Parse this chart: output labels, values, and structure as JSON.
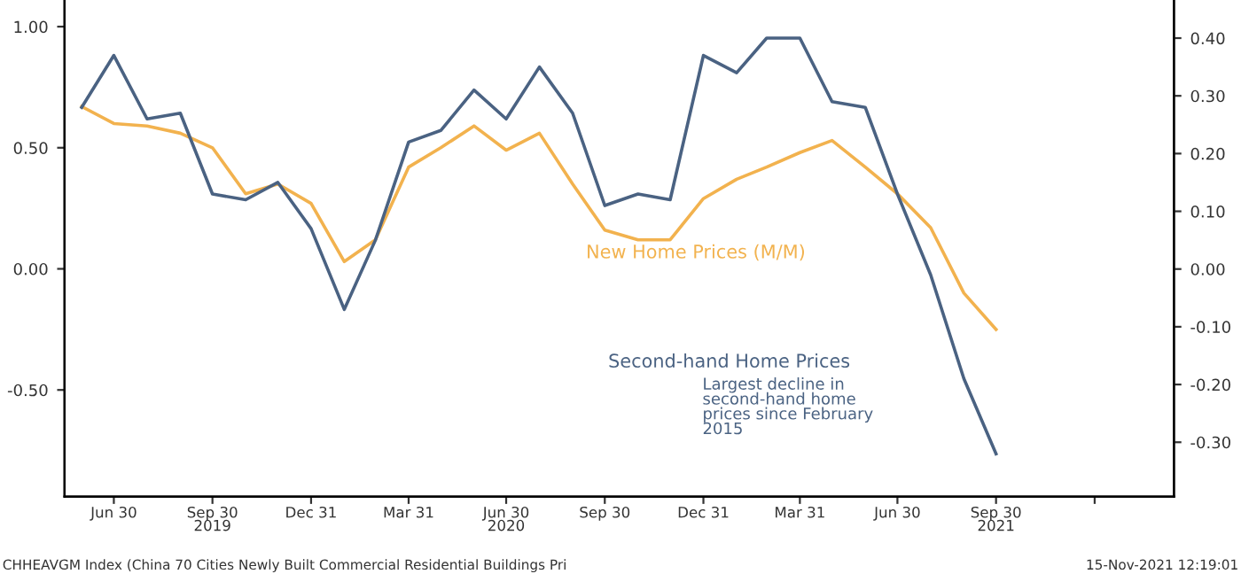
{
  "chart_data": {
    "type": "line",
    "x": [
      "2019-05-31",
      "2019-06-30",
      "2019-07-31",
      "2019-08-31",
      "2019-09-30",
      "2019-10-31",
      "2019-11-30",
      "2019-12-31",
      "2020-01-31",
      "2020-02-29",
      "2020-03-31",
      "2020-04-30",
      "2020-05-31",
      "2020-06-30",
      "2020-07-31",
      "2020-08-31",
      "2020-09-30",
      "2020-10-31",
      "2020-11-30",
      "2020-12-31",
      "2021-01-31",
      "2021-02-28",
      "2021-03-31",
      "2021-04-30",
      "2021-05-31",
      "2021-06-30",
      "2021-07-31",
      "2021-08-31",
      "2021-09-30"
    ],
    "series": [
      {
        "name": "New Home Prices (M/M)",
        "color": "#f2b24e",
        "values": [
          0.67,
          0.6,
          0.59,
          0.56,
          0.5,
          0.31,
          0.35,
          0.27,
          0.03,
          0.12,
          0.42,
          0.5,
          0.59,
          0.49,
          0.56,
          0.35,
          0.16,
          0.12,
          0.12,
          0.29,
          0.37,
          0.42,
          0.48,
          0.53,
          0.42,
          0.31,
          0.17,
          -0.1,
          -0.25
        ]
      },
      {
        "name": "Second-hand Home Prices",
        "color": "#4a6282",
        "axis": "y2",
        "values": [
          0.28,
          0.37,
          0.26,
          0.27,
          0.13,
          0.12,
          0.15,
          0.07,
          -0.07,
          0.05,
          0.22,
          0.24,
          0.31,
          0.26,
          0.35,
          0.27,
          0.11,
          0.13,
          0.12,
          0.37,
          0.34,
          0.4,
          0.4,
          0.29,
          0.28,
          0.13,
          -0.01,
          -0.19,
          -0.32
        ]
      }
    ],
    "xlim": [
      "2019-05-15",
      "2022-03-15"
    ],
    "xticks": [
      {
        "value": "2019-06-30",
        "label": "Jun 30"
      },
      {
        "value": "2019-09-30",
        "label": "Sep 30\n2019"
      },
      {
        "value": "2019-12-31",
        "label": "Dec 31"
      },
      {
        "value": "2020-03-31",
        "label": "Mar 31"
      },
      {
        "value": "2020-06-30",
        "label": "Jun 30\n2020"
      },
      {
        "value": "2020-09-30",
        "label": "Sep 30"
      },
      {
        "value": "2020-12-31",
        "label": "Dec 31"
      },
      {
        "value": "2021-03-31",
        "label": "Mar 31"
      },
      {
        "value": "2021-06-30",
        "label": "Jun 30"
      },
      {
        "value": "2021-09-30",
        "label": "Sep 30\n2021"
      },
      {
        "value": "2021-12-31",
        "label": null
      }
    ],
    "ylim": [
      -0.94,
      1.11
    ],
    "yticks": [
      {
        "value": -0.5,
        "label": "-0.50"
      },
      {
        "value": 0,
        "label": "0.00"
      },
      {
        "value": 0.5,
        "label": "0.50"
      },
      {
        "value": 1,
        "label": "1.00"
      }
    ],
    "y2lim": [
      -0.394,
      0.466
    ],
    "y2ticks": [
      {
        "value": -0.3,
        "label": "-0.30"
      },
      {
        "value": -0.2,
        "label": "-0.20"
      },
      {
        "value": -0.1,
        "label": "-0.10"
      },
      {
        "value": 0,
        "label": "0.00"
      },
      {
        "value": 0.1,
        "label": "0.10"
      },
      {
        "value": 0.2,
        "label": "0.20"
      },
      {
        "value": 0.3,
        "label": "0.30"
      },
      {
        "value": 0.4,
        "label": "0.40"
      }
    ],
    "annotations": [
      "Largest decline in\nsecond-hand home\nprices since February\n2015",
      "CHHEAVGM Index (China 70 Cities Newly Built Commercial Residential Buildings Pri",
      "15-Nov-2021 12:19:01"
    ],
    "grid": false,
    "legend": false,
    "marker": "none",
    "line_style": "solid"
  }
}
